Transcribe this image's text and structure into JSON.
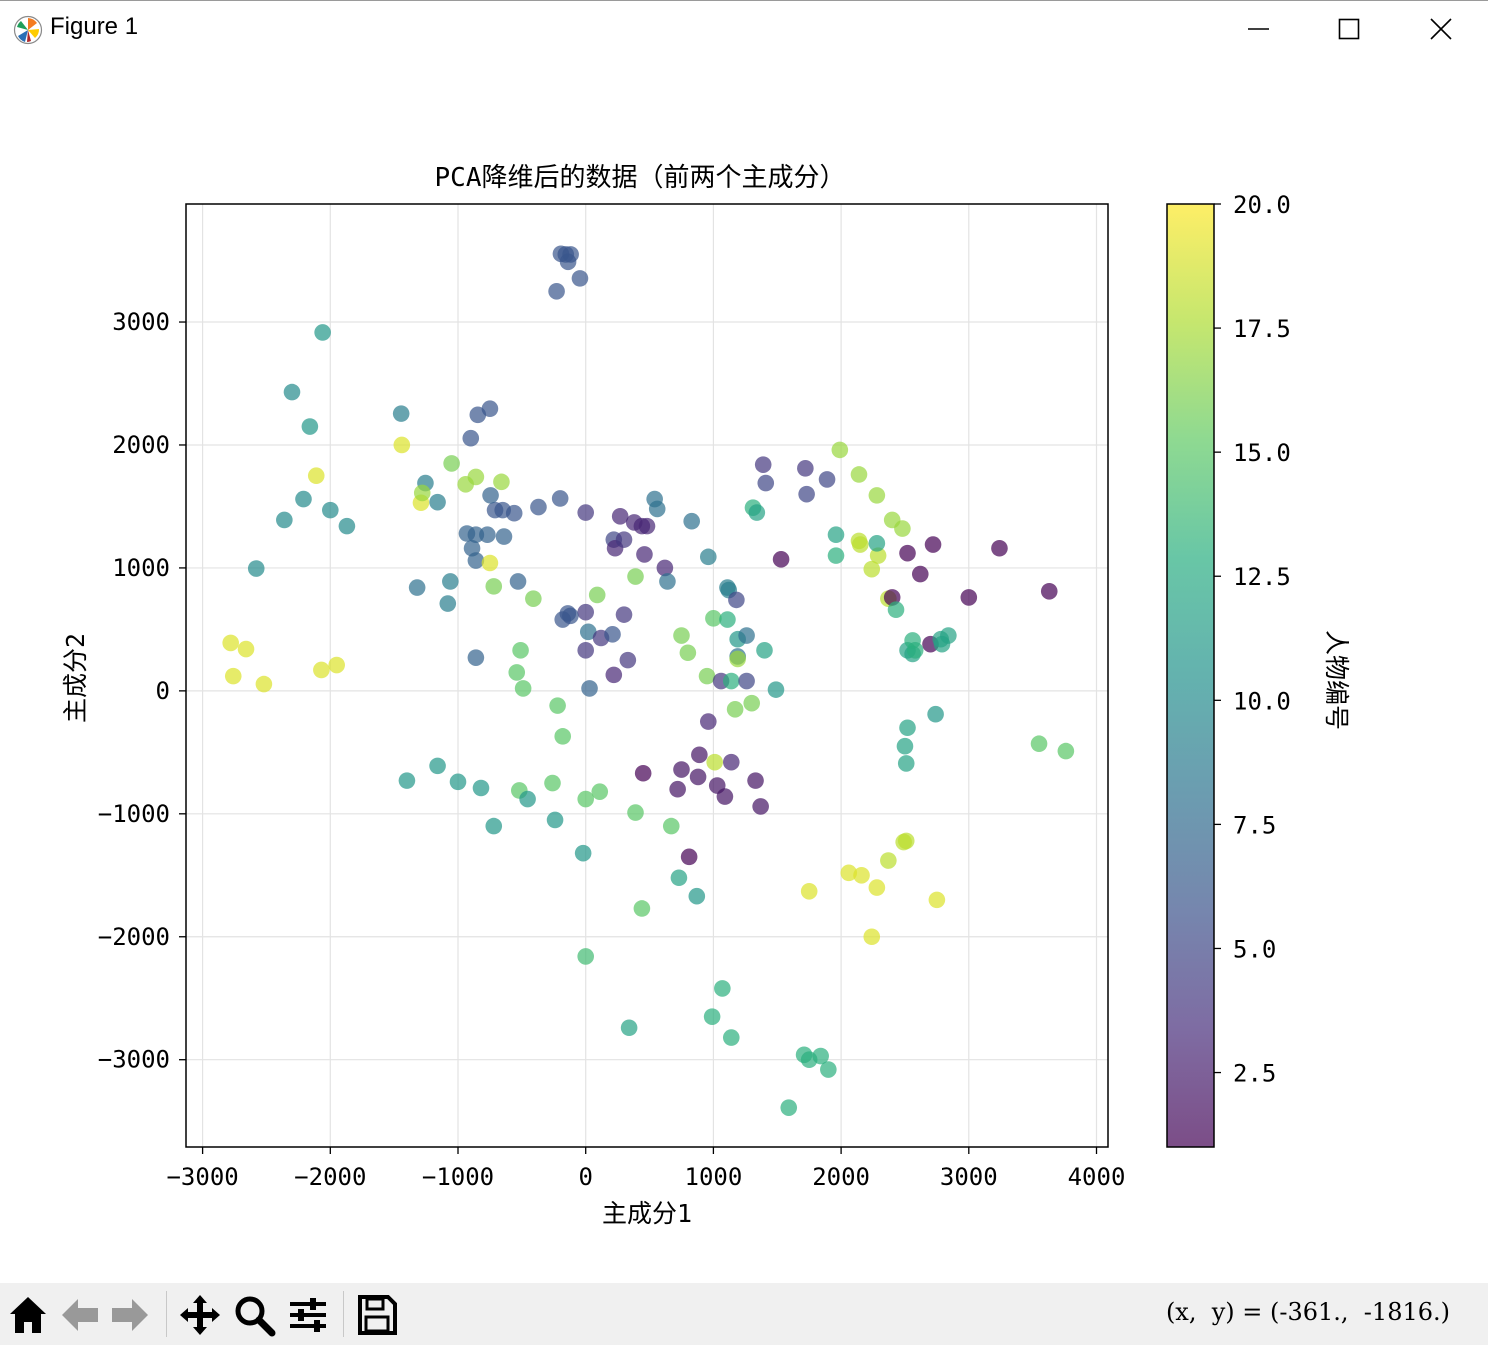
{
  "window": {
    "title": "Figure 1"
  },
  "toolbar": {
    "buttons": [
      "home-icon",
      "back-arrow-icon",
      "forward-arrow-icon",
      "pan-icon",
      "zoom-icon",
      "configure-subplots-icon",
      "save-icon"
    ],
    "coords": "(x,  y) = (-361.,  -1816.)"
  },
  "chart_data": {
    "type": "scatter",
    "title": "PCA降维后的数据（前两个主成分）",
    "xlabel": "主成分1",
    "ylabel": "主成分2",
    "xlim": [
      -3130,
      4090
    ],
    "ylim": [
      -3710,
      3960
    ],
    "xticks": [
      -3000,
      -2000,
      -1000,
      0,
      1000,
      2000,
      3000,
      4000
    ],
    "xtick_labels": [
      "−3000",
      "−2000",
      "−1000",
      "0",
      "1000",
      "2000",
      "3000",
      "4000"
    ],
    "yticks": [
      -3000,
      -2000,
      -1000,
      0,
      1000,
      2000,
      3000
    ],
    "ytick_labels": [
      "−3000",
      "−2000",
      "−1000",
      "0",
      "1000",
      "2000",
      "3000"
    ],
    "grid": true,
    "colormap": "viridis",
    "alpha": 0.7,
    "colorbar": {
      "label": "人物编号",
      "min": 1,
      "max": 20,
      "ticks": [
        2.5,
        5.0,
        7.5,
        10.0,
        12.5,
        15.0,
        17.5,
        20.0
      ],
      "tick_labels": [
        "2.5",
        "5.0",
        "7.5",
        "10.0",
        "12.5",
        "15.0",
        "17.5",
        "20.0"
      ]
    },
    "points": [
      [
        -156,
        3550,
        6
      ],
      [
        -194,
        3555,
        6
      ],
      [
        -118,
        3550,
        6
      ],
      [
        -138,
        3490,
        6
      ],
      [
        -228,
        3250,
        6
      ],
      [
        -45,
        3355,
        6
      ],
      [
        -750,
        2295,
        6
      ],
      [
        -845,
        2245,
        6
      ],
      [
        -900,
        2055,
        6
      ],
      [
        -560,
        1445,
        6
      ],
      [
        -650,
        1470,
        6
      ],
      [
        -710,
        1470,
        6
      ],
      [
        -745,
        1590,
        7
      ],
      [
        -370,
        1495,
        6
      ],
      [
        -200,
        1565,
        6
      ],
      [
        -930,
        1280,
        7
      ],
      [
        -860,
        1270,
        7
      ],
      [
        -770,
        1270,
        7
      ],
      [
        -640,
        1255,
        7
      ],
      [
        -890,
        1160,
        7
      ],
      [
        -860,
        1060,
        7
      ],
      [
        -530,
        890,
        7
      ],
      [
        -1060,
        890,
        9
      ],
      [
        -1320,
        840,
        8
      ],
      [
        -1080,
        710,
        9
      ],
      [
        -860,
        270,
        7
      ],
      [
        -1255,
        1690,
        9
      ],
      [
        -1160,
        1535,
        9
      ],
      [
        -1445,
        2255,
        9
      ],
      [
        -1050,
        1850,
        16
      ],
      [
        -2300,
        2430,
        10
      ],
      [
        -2160,
        2150,
        11
      ],
      [
        -2060,
        2915,
        11
      ],
      [
        -2210,
        1560,
        10
      ],
      [
        -2000,
        1470,
        10
      ],
      [
        -1870,
        1340,
        10
      ],
      [
        -2360,
        1390,
        10
      ],
      [
        -2580,
        995,
        10
      ],
      [
        -1440,
        2000,
        19
      ],
      [
        -2110,
        1750,
        19
      ],
      [
        -1290,
        1530,
        19
      ],
      [
        -1280,
        1610,
        17
      ],
      [
        -940,
        1680,
        17
      ],
      [
        -860,
        1740,
        17
      ],
      [
        -660,
        1700,
        17
      ],
      [
        -750,
        1040,
        19
      ],
      [
        -720,
        850,
        16
      ],
      [
        -410,
        750,
        16
      ],
      [
        -510,
        330,
        15
      ],
      [
        -540,
        150,
        15
      ],
      [
        -490,
        20,
        15
      ],
      [
        -220,
        -120,
        15
      ],
      [
        -180,
        -370,
        15
      ],
      [
        -1400,
        -730,
        11
      ],
      [
        -1160,
        -610,
        11
      ],
      [
        -1000,
        -740,
        11
      ],
      [
        -820,
        -790,
        11
      ],
      [
        -720,
        -1100,
        11
      ],
      [
        -520,
        -810,
        15
      ],
      [
        -455,
        -880,
        11
      ],
      [
        -260,
        -750,
        15
      ],
      [
        -240,
        -1050,
        11
      ],
      [
        -20,
        -1320,
        11
      ],
      [
        0,
        -880,
        15
      ],
      [
        110,
        -820,
        15
      ],
      [
        0,
        -2160,
        14
      ],
      [
        340,
        -2740,
        12
      ],
      [
        390,
        -990,
        15
      ],
      [
        440,
        -1770,
        15
      ],
      [
        670,
        -1100,
        15
      ],
      [
        730,
        -1520,
        12
      ],
      [
        870,
        -1670,
        11
      ],
      [
        -2780,
        390,
        19
      ],
      [
        -2660,
        340,
        19
      ],
      [
        -2760,
        120,
        19
      ],
      [
        -2520,
        55,
        19
      ],
      [
        -2070,
        170,
        19
      ],
      [
        -1950,
        210,
        19
      ],
      [
        0,
        1450,
        4
      ],
      [
        270,
        1420,
        3
      ],
      [
        380,
        1370,
        3
      ],
      [
        440,
        1340,
        3
      ],
      [
        480,
        1340,
        3
      ],
      [
        220,
        1230,
        5
      ],
      [
        230,
        1160,
        3
      ],
      [
        300,
        1230,
        4
      ],
      [
        460,
        1110,
        3
      ],
      [
        620,
        1000,
        3
      ],
      [
        640,
        890,
        8
      ],
      [
        830,
        1380,
        8
      ],
      [
        960,
        1090,
        9
      ],
      [
        540,
        1560,
        8
      ],
      [
        560,
        1480,
        8
      ],
      [
        0,
        640,
        4
      ],
      [
        300,
        620,
        4
      ],
      [
        -140,
        630,
        6
      ],
      [
        -180,
        580,
        6
      ],
      [
        -120,
        610,
        6
      ],
      [
        20,
        480,
        8
      ],
      [
        120,
        430,
        4
      ],
      [
        210,
        460,
        6
      ],
      [
        0,
        330,
        4
      ],
      [
        220,
        130,
        3
      ],
      [
        330,
        250,
        4
      ],
      [
        30,
        20,
        7
      ],
      [
        90,
        780,
        16
      ],
      [
        390,
        930,
        16
      ],
      [
        750,
        450,
        16
      ],
      [
        800,
        310,
        16
      ],
      [
        1000,
        590,
        15
      ],
      [
        1110,
        580,
        13
      ],
      [
        950,
        120,
        16
      ],
      [
        1060,
        80,
        4
      ],
      [
        1140,
        80,
        13
      ],
      [
        1190,
        280,
        8
      ],
      [
        1190,
        420,
        11
      ],
      [
        1260,
        450,
        8
      ],
      [
        1260,
        80,
        5
      ],
      [
        1190,
        260,
        17
      ],
      [
        1170,
        -150,
        16
      ],
      [
        1300,
        -100,
        16
      ],
      [
        1400,
        330,
        12
      ],
      [
        1490,
        10,
        11
      ],
      [
        1110,
        840,
        9
      ],
      [
        1120,
        820,
        9
      ],
      [
        1180,
        740,
        5
      ],
      [
        960,
        -250,
        3
      ],
      [
        890,
        -520,
        2
      ],
      [
        1010,
        -580,
        18
      ],
      [
        1140,
        -580,
        3
      ],
      [
        750,
        -640,
        2
      ],
      [
        450,
        -670,
        1
      ],
      [
        880,
        -700,
        2
      ],
      [
        720,
        -800,
        2
      ],
      [
        1030,
        -770,
        2
      ],
      [
        1090,
        -860,
        2
      ],
      [
        1330,
        -730,
        2
      ],
      [
        1370,
        -940,
        2
      ],
      [
        810,
        -1350,
        1
      ],
      [
        1390,
        1840,
        4
      ],
      [
        1410,
        1690,
        5
      ],
      [
        1720,
        1810,
        4
      ],
      [
        1730,
        1600,
        5
      ],
      [
        1890,
        1720,
        5
      ],
      [
        1530,
        1070,
        1
      ],
      [
        1310,
        1490,
        13
      ],
      [
        1340,
        1450,
        12
      ],
      [
        1960,
        1270,
        12
      ],
      [
        1960,
        1100,
        13
      ],
      [
        1990,
        1960,
        17
      ],
      [
        2140,
        1760,
        17
      ],
      [
        2140,
        1220,
        18
      ],
      [
        2150,
        1190,
        18
      ],
      [
        2280,
        1590,
        17
      ],
      [
        2240,
        990,
        18
      ],
      [
        2290,
        1100,
        18
      ],
      [
        2280,
        1200,
        12
      ],
      [
        2400,
        1390,
        17
      ],
      [
        2480,
        1320,
        17
      ],
      [
        2370,
        750,
        18
      ],
      [
        2400,
        760,
        1
      ],
      [
        2430,
        660,
        13
      ],
      [
        2520,
        1120,
        1
      ],
      [
        2620,
        950,
        1
      ],
      [
        2720,
        1190,
        1
      ],
      [
        2700,
        380,
        1
      ],
      [
        2740,
        -190,
        11
      ],
      [
        2520,
        330,
        12
      ],
      [
        2560,
        300,
        12
      ],
      [
        2560,
        410,
        13
      ],
      [
        2580,
        330,
        13
      ],
      [
        2780,
        420,
        12
      ],
      [
        2790,
        380,
        12
      ],
      [
        2840,
        450,
        12
      ],
      [
        2520,
        -300,
        12
      ],
      [
        2500,
        -450,
        12
      ],
      [
        2510,
        -590,
        12
      ],
      [
        3000,
        760,
        1
      ],
      [
        3240,
        1160,
        1
      ],
      [
        3630,
        810,
        1
      ],
      [
        3550,
        -430,
        15
      ],
      [
        3760,
        -490,
        15
      ],
      [
        2510,
        -1220,
        18
      ],
      [
        2490,
        -1230,
        18
      ],
      [
        2370,
        -1380,
        18
      ],
      [
        2160,
        -1500,
        19
      ],
      [
        2060,
        -1480,
        19
      ],
      [
        2280,
        -1600,
        19
      ],
      [
        2240,
        -2000,
        19
      ],
      [
        1750,
        -1630,
        19
      ],
      [
        2750,
        -1700,
        19
      ],
      [
        1070,
        -2420,
        13
      ],
      [
        990,
        -2650,
        13
      ],
      [
        1140,
        -2820,
        13
      ],
      [
        1710,
        -2960,
        13
      ],
      [
        1840,
        -2970,
        13
      ],
      [
        1900,
        -3080,
        13
      ],
      [
        1750,
        -3000,
        13
      ],
      [
        1590,
        -3390,
        13
      ]
    ]
  }
}
